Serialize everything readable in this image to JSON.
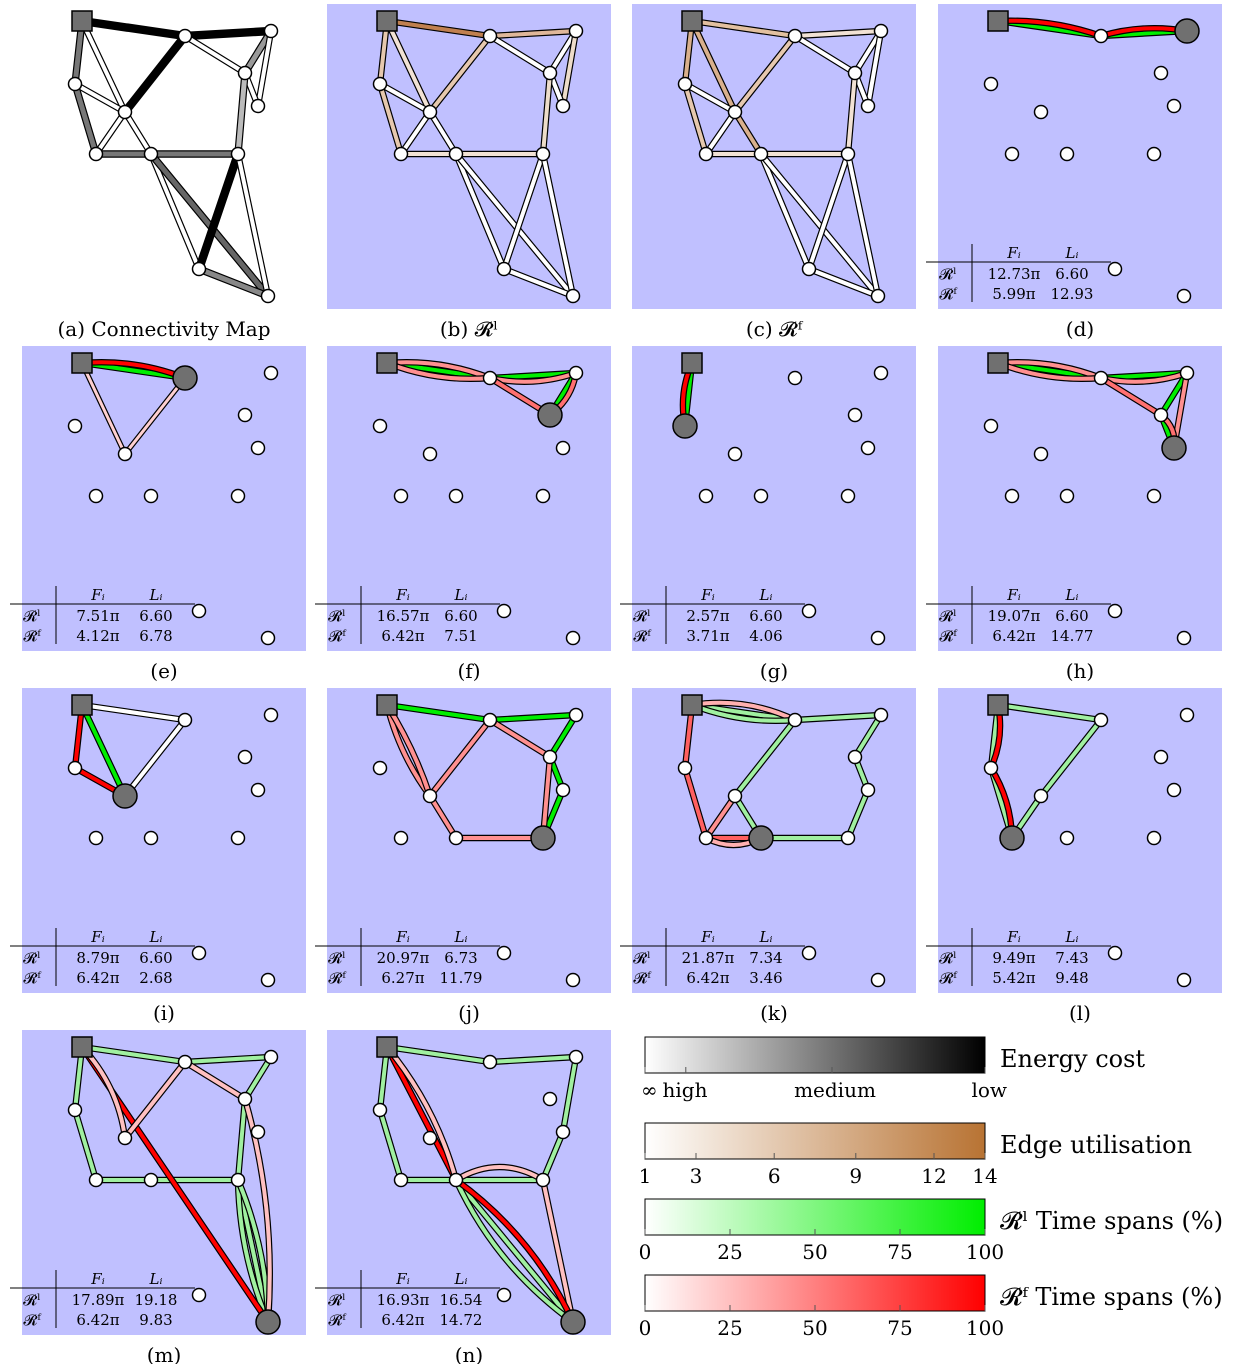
{
  "panels": {
    "a": {
      "caption": "(a) Connectivity Map"
    },
    "b": {
      "caption": "(b) 𝓡ˡ"
    },
    "c": {
      "caption": "(c) 𝓡ᶠ"
    },
    "d": {
      "caption": "(d)",
      "rows": [
        [
          "𝓡ˡ",
          "12.73π",
          "6.60"
        ],
        [
          "𝓡ᶠ",
          "5.99π",
          "12.93"
        ]
      ]
    },
    "e": {
      "caption": "(e)",
      "rows": [
        [
          "𝓡ˡ",
          "7.51π",
          "6.60"
        ],
        [
          "𝓡ᶠ",
          "4.12π",
          "6.78"
        ]
      ]
    },
    "f": {
      "caption": "(f)",
      "rows": [
        [
          "𝓡ˡ",
          "16.57π",
          "6.60"
        ],
        [
          "𝓡ᶠ",
          "6.42π",
          "7.51"
        ]
      ]
    },
    "g": {
      "caption": "(g)",
      "rows": [
        [
          "𝓡ˡ",
          "2.57π",
          "6.60"
        ],
        [
          "𝓡ᶠ",
          "3.71π",
          "4.06"
        ]
      ]
    },
    "h": {
      "caption": "(h)",
      "rows": [
        [
          "𝓡ˡ",
          "19.07π",
          "6.60"
        ],
        [
          "𝓡ᶠ",
          "6.42π",
          "14.77"
        ]
      ]
    },
    "i": {
      "caption": "(i)",
      "rows": [
        [
          "𝓡ˡ",
          "8.79π",
          "6.60"
        ],
        [
          "𝓡ᶠ",
          "6.42π",
          "2.68"
        ]
      ]
    },
    "j": {
      "caption": "(j)",
      "rows": [
        [
          "𝓡ˡ",
          "20.97π",
          "6.73"
        ],
        [
          "𝓡ᶠ",
          "6.27π",
          "11.79"
        ]
      ]
    },
    "k": {
      "caption": "(k)",
      "rows": [
        [
          "𝓡ˡ",
          "21.87π",
          "7.34"
        ],
        [
          "𝓡ᶠ",
          "6.42π",
          "3.46"
        ]
      ]
    },
    "l": {
      "caption": "(l)",
      "rows": [
        [
          "𝓡ˡ",
          "9.49π",
          "7.43"
        ],
        [
          "𝓡ᶠ",
          "5.42π",
          "9.48"
        ]
      ]
    },
    "m": {
      "caption": "(m)",
      "rows": [
        [
          "𝓡ˡ",
          "17.89π",
          "19.18"
        ],
        [
          "𝓡ᶠ",
          "6.42π",
          "9.83"
        ]
      ]
    },
    "n": {
      "caption": "(n)",
      "rows": [
        [
          "𝓡ˡ",
          "16.93π",
          "16.54"
        ],
        [
          "𝓡ᶠ",
          "6.42π",
          "14.72"
        ]
      ]
    }
  },
  "table_headers": {
    "f": "Fᵢ",
    "l": "Lᵢ"
  },
  "legend": {
    "energy": {
      "label": "Energy cost",
      "ticks": [
        "∞",
        "high",
        "medium",
        "low"
      ]
    },
    "utilisation": {
      "label": "Edge utilisation",
      "ticks": [
        "1",
        "3",
        "6",
        "9",
        "12",
        "14"
      ]
    },
    "rl": {
      "label": "𝓡ˡ Time spans (%)",
      "ticks": [
        "0",
        "25",
        "50",
        "75",
        "100"
      ]
    },
    "rf": {
      "label": "𝓡ᶠ Time spans (%)",
      "ticks": [
        "0",
        "25",
        "50",
        "75",
        "100"
      ]
    }
  },
  "colors": {
    "panel_background": "#c0c0ff",
    "node": "#ffffff",
    "station": "#707070",
    "utilisation_high": "#b87333",
    "rl_high": "#00ee00",
    "rf_high": "#ff0000"
  },
  "icons": {
    "station": "square-station-icon",
    "robot": "filled-circle-robot-icon",
    "node": "circle-node-icon"
  }
}
